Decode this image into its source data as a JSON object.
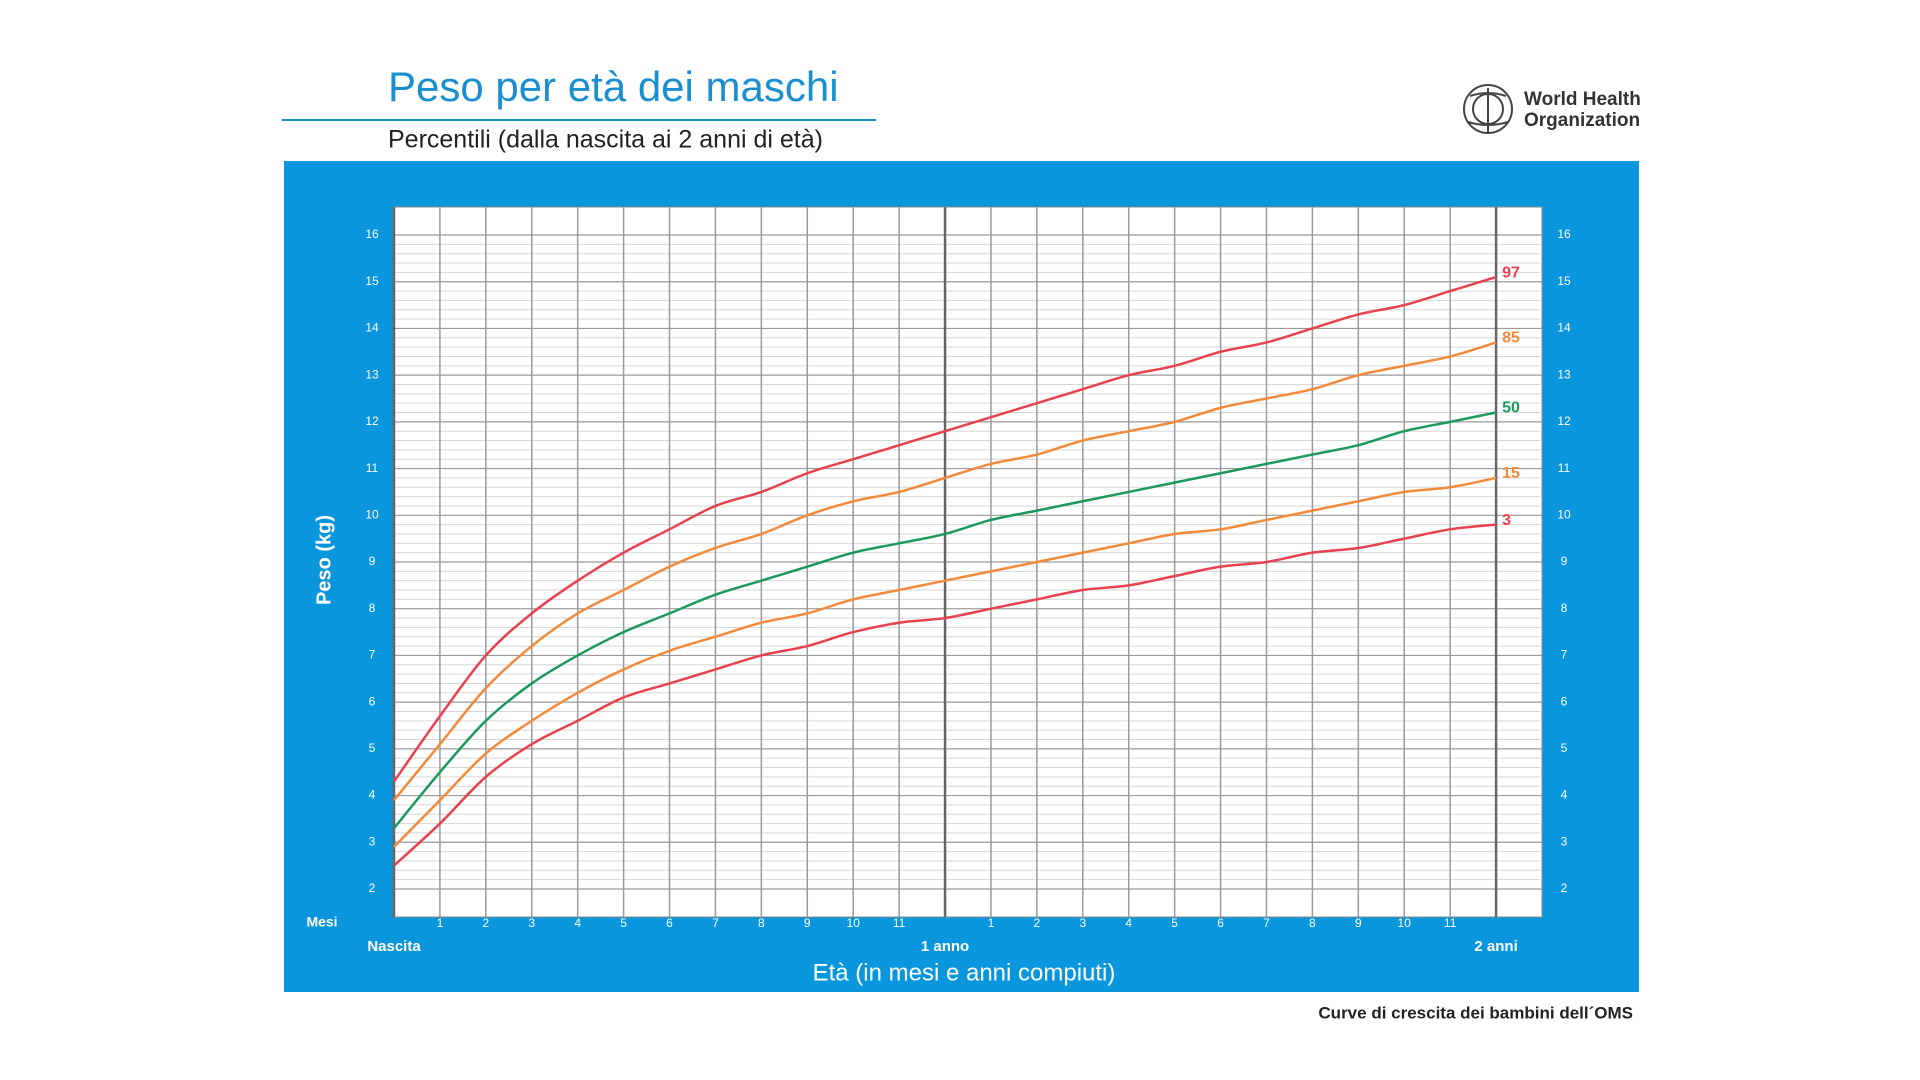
{
  "chart_data": {
    "type": "line",
    "title": "Peso per età dei maschi",
    "subtitle": "Percentili (dalla nascita ai 2 anni di età)",
    "logo": [
      "World Health",
      "Organization"
    ],
    "footer": "Curve di crescita dei bambini dell´OMS",
    "y_label": "Peso (kg)",
    "x_label": "Età (in mesi e anni compiuti)",
    "x_unit_label": "Mesi",
    "x": [
      0,
      1,
      2,
      3,
      4,
      5,
      6,
      7,
      8,
      9,
      10,
      11,
      12,
      13,
      14,
      15,
      16,
      17,
      18,
      19,
      20,
      21,
      22,
      23,
      24
    ],
    "series": [
      {
        "name": "97",
        "color": "#e8414f",
        "values": [
          4.3,
          5.7,
          7.0,
          7.9,
          8.6,
          9.2,
          9.7,
          10.2,
          10.5,
          10.9,
          11.2,
          11.5,
          11.8,
          12.1,
          12.4,
          12.7,
          13.0,
          13.2,
          13.5,
          13.7,
          14.0,
          14.3,
          14.5,
          14.8,
          15.1
        ]
      },
      {
        "name": "85",
        "color": "#f28a3c",
        "values": [
          3.9,
          5.1,
          6.3,
          7.2,
          7.9,
          8.4,
          8.9,
          9.3,
          9.6,
          10.0,
          10.3,
          10.5,
          10.8,
          11.1,
          11.3,
          11.6,
          11.8,
          12.0,
          12.3,
          12.5,
          12.7,
          13.0,
          13.2,
          13.4,
          13.7
        ]
      },
      {
        "name": "50",
        "color": "#1c9a5c",
        "values": [
          3.3,
          4.5,
          5.6,
          6.4,
          7.0,
          7.5,
          7.9,
          8.3,
          8.6,
          8.9,
          9.2,
          9.4,
          9.6,
          9.9,
          10.1,
          10.3,
          10.5,
          10.7,
          10.9,
          11.1,
          11.3,
          11.5,
          11.8,
          12.0,
          12.2
        ]
      },
      {
        "name": "15",
        "color": "#f28a3c",
        "values": [
          2.9,
          3.9,
          4.9,
          5.6,
          6.2,
          6.7,
          7.1,
          7.4,
          7.7,
          7.9,
          8.2,
          8.4,
          8.6,
          8.8,
          9.0,
          9.2,
          9.4,
          9.6,
          9.7,
          9.9,
          10.1,
          10.3,
          10.5,
          10.6,
          10.8
        ]
      },
      {
        "name": "3",
        "color": "#e8414f",
        "values": [
          2.5,
          3.4,
          4.4,
          5.1,
          5.6,
          6.1,
          6.4,
          6.7,
          7.0,
          7.2,
          7.5,
          7.7,
          7.8,
          8.0,
          8.2,
          8.4,
          8.5,
          8.7,
          8.9,
          9.0,
          9.2,
          9.3,
          9.5,
          9.7,
          9.8
        ]
      }
    ],
    "xlim": [
      0,
      25
    ],
    "ylim": [
      1.4,
      16.6
    ],
    "yticks": [
      2,
      3,
      4,
      5,
      6,
      7,
      8,
      9,
      10,
      11,
      12,
      13,
      14,
      15,
      16
    ],
    "xticks": [
      1,
      2,
      3,
      4,
      5,
      6,
      7,
      8,
      9,
      10,
      11,
      {
        "value": 13,
        "label": "1"
      },
      {
        "value": 14,
        "label": "2"
      },
      {
        "value": 15,
        "label": "3"
      },
      {
        "value": 16,
        "label": "4"
      },
      {
        "value": 17,
        "label": "5"
      },
      {
        "value": 18,
        "label": "6"
      },
      {
        "value": 19,
        "label": "7"
      },
      {
        "value": 20,
        "label": "8"
      },
      {
        "value": 21,
        "label": "9"
      },
      {
        "value": 22,
        "label": "10"
      },
      {
        "value": 23,
        "label": "11"
      }
    ],
    "year_ticks": [
      {
        "value": 0,
        "label": "Nascita"
      },
      {
        "value": 12,
        "label": "1 anno"
      },
      {
        "value": 24,
        "label": "2 anni"
      }
    ],
    "grid": true,
    "minor_grid": true,
    "right_axis": true
  }
}
